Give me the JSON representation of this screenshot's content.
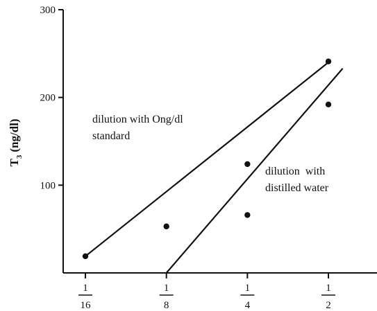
{
  "chart_data": {
    "type": "line",
    "ylabel_main": "T",
    "ylabel_sub": "3",
    "ylabel_unit": "(ng/dl)",
    "xlabel": "",
    "ylim": [
      0,
      300
    ],
    "yticks": [
      {
        "value": 100,
        "label": "100"
      },
      {
        "value": 200,
        "label": "200"
      },
      {
        "value": 300,
        "label": "300"
      }
    ],
    "xticks": [
      {
        "value": 0.0625,
        "num": "1",
        "den": "16"
      },
      {
        "value": 0.125,
        "num": "1",
        "den": "8"
      },
      {
        "value": 0.25,
        "num": "1",
        "den": "4"
      },
      {
        "value": 0.5,
        "num": "1",
        "den": "2"
      }
    ],
    "series": [
      {
        "label_lines": [
          "dilution with Ong/dl",
          "standard"
        ],
        "points": [
          {
            "x": 0.0625,
            "y": 19
          },
          {
            "x": 0.125,
            "y": 53
          },
          {
            "x": 0.25,
            "y": 124
          },
          {
            "x": 0.5,
            "y": 241
          }
        ],
        "fit": {
          "x0": 0.0625,
          "y0": 19,
          "x1": 0.5,
          "y1": 240
        }
      },
      {
        "label_lines": [
          "dilution  with",
          "distilled water"
        ],
        "points": [
          {
            "x": 0.25,
            "y": 66
          },
          {
            "x": 0.5,
            "y": 192
          }
        ],
        "fit": {
          "x0": 0.125,
          "y0": 0,
          "x1": 0.565,
          "y1": 233
        }
      }
    ]
  }
}
